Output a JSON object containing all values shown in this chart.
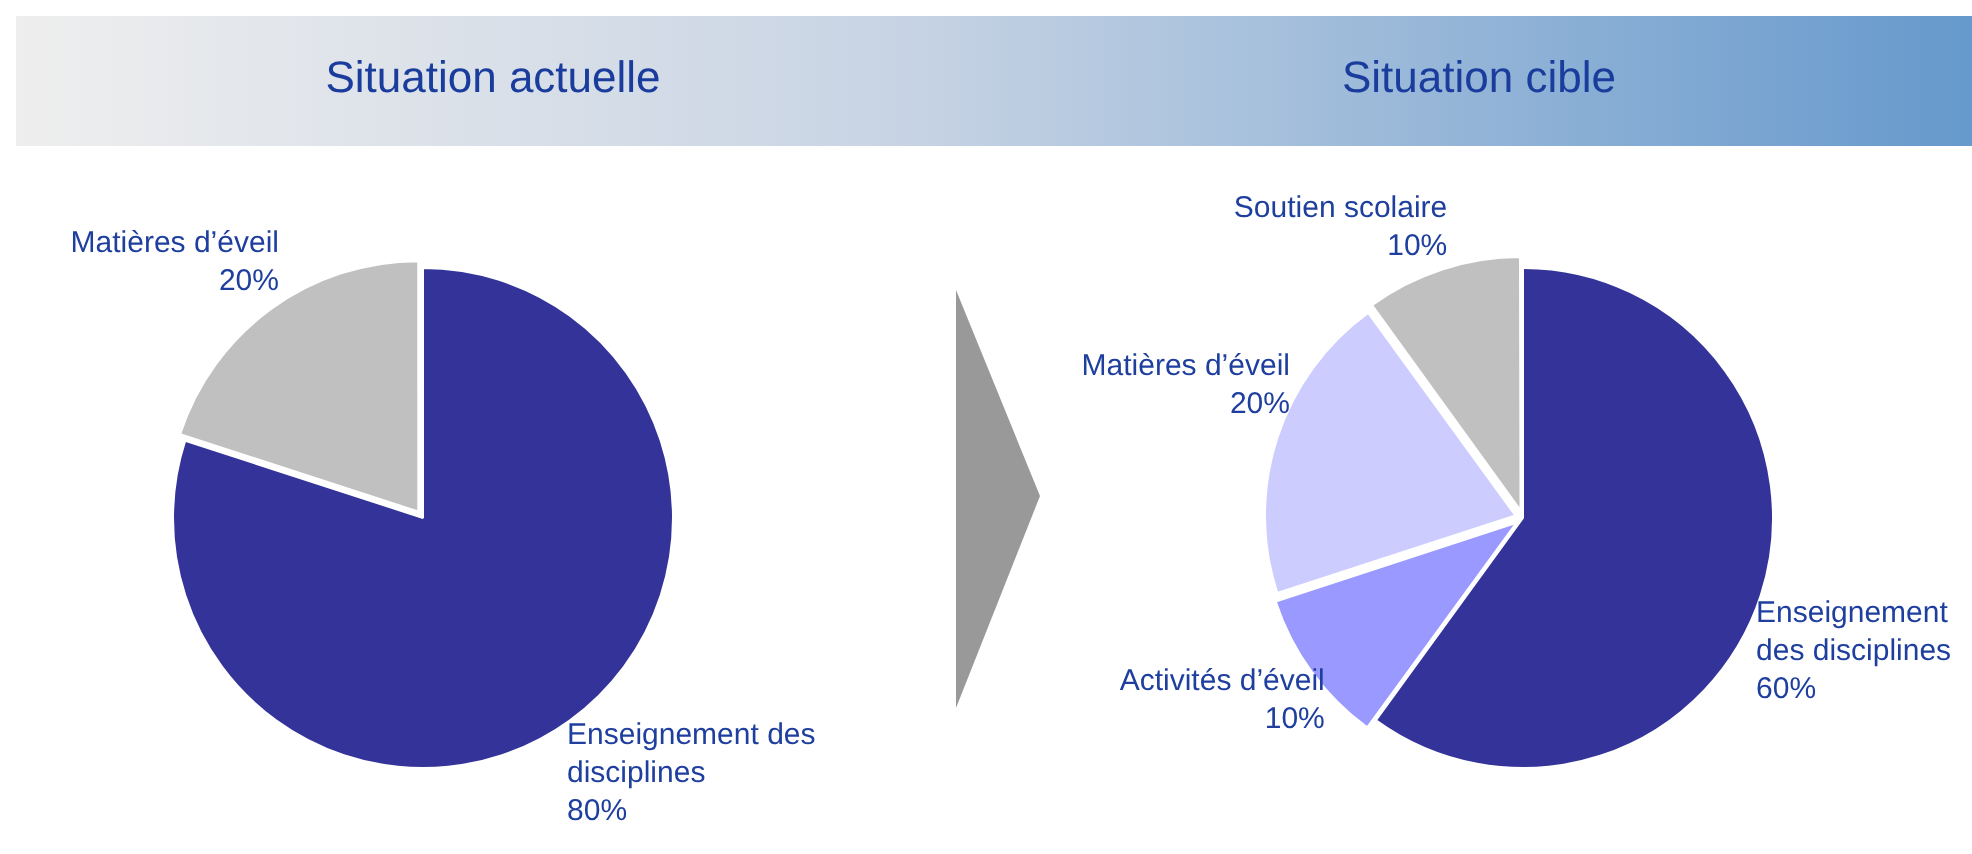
{
  "chart_data": [
    {
      "type": "pie",
      "title": "Situation actuelle",
      "categories": [
        "Enseignement des disciplines",
        "Matières d’éveil"
      ],
      "values": [
        80,
        20
      ],
      "colors": [
        "#333399",
        "#c0c0c0"
      ],
      "value_labels": [
        "80%",
        "20%"
      ]
    },
    {
      "type": "pie",
      "title": "Situation cible",
      "categories": [
        "Enseignement des disciplines",
        "Activités d’éveil",
        "Matières d’éveil",
        "Soutien scolaire"
      ],
      "values": [
        60,
        10,
        20,
        10
      ],
      "colors": [
        "#333399",
        "#9999ff",
        "#ccccff",
        "#c0c0c0"
      ],
      "value_labels": [
        "60%",
        "10%",
        "20%",
        "10%"
      ]
    }
  ]
}
